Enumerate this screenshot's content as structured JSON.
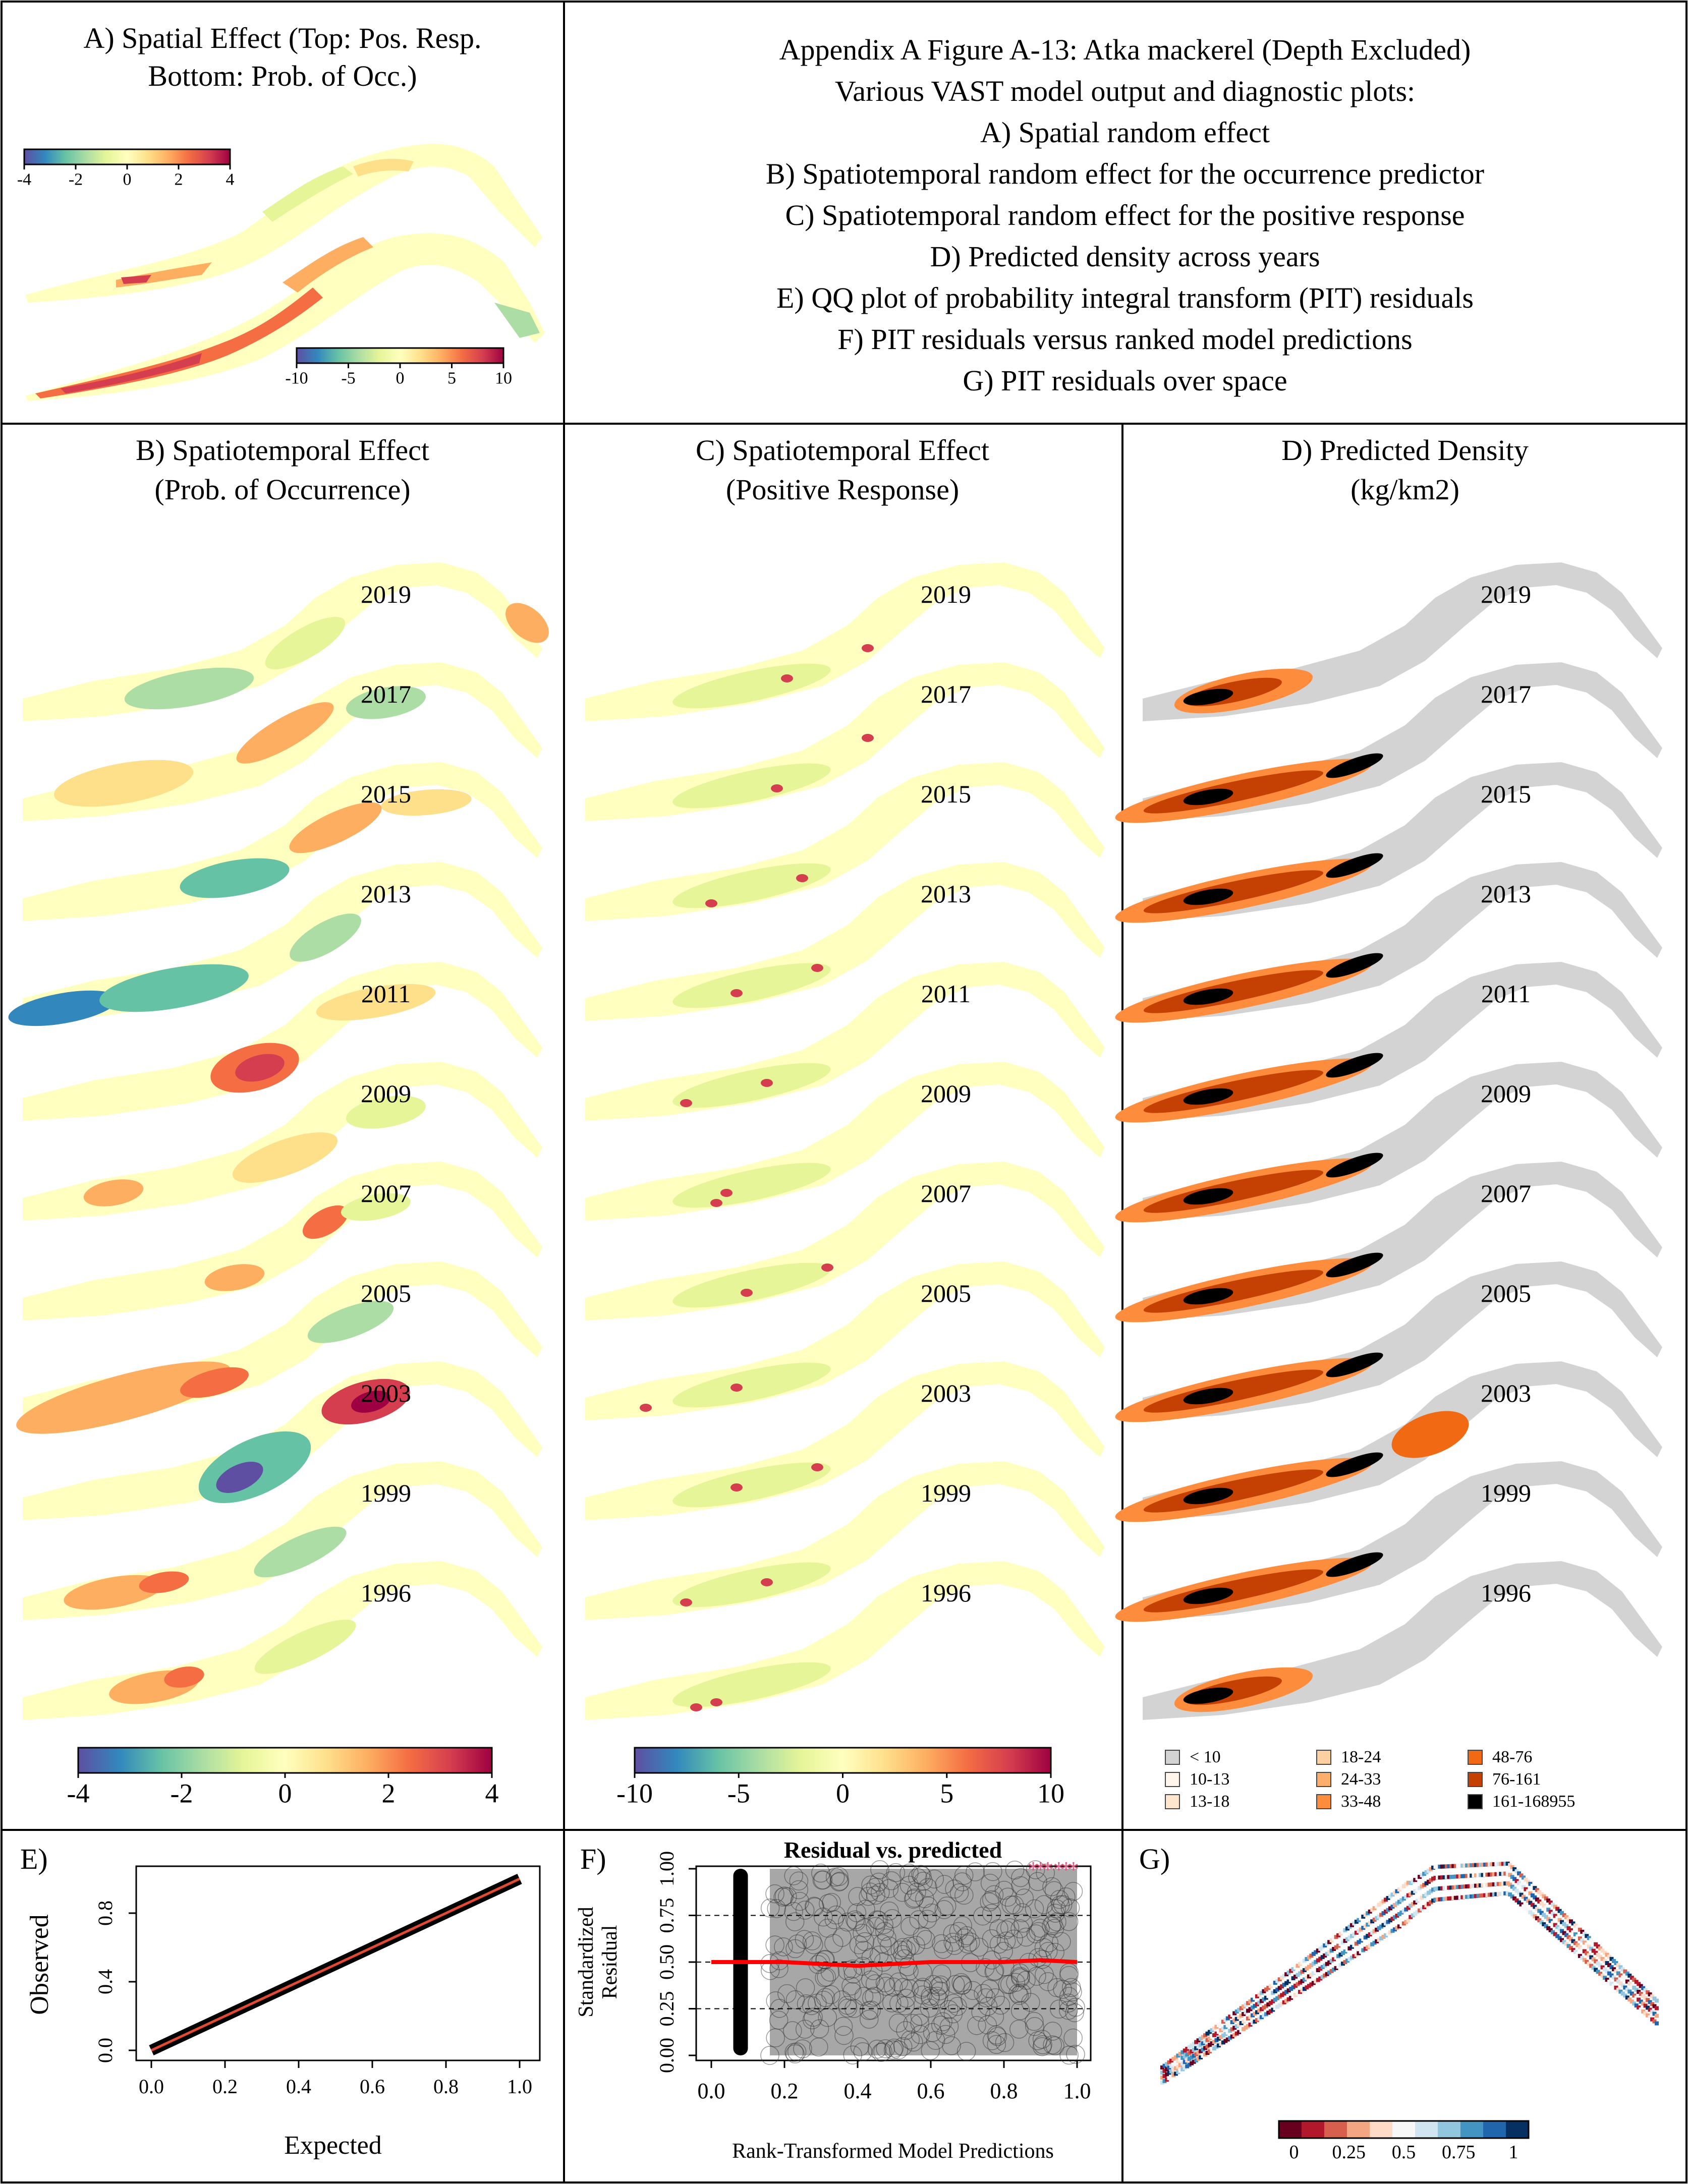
{
  "panel_a": {
    "title": "A) Spatial Effect (Top: Pos. Resp.",
    "title2": "Bottom: Prob. of Occ.)",
    "colorbar_top": {
      "min": -4,
      "max": 4,
      "ticks": [
        "-4",
        "-2",
        "0",
        "2",
        "4"
      ]
    },
    "colorbar_bottom": {
      "min": -10,
      "max": 10,
      "ticks": [
        "-10",
        "-5",
        "0",
        "5",
        "10"
      ]
    }
  },
  "caption": {
    "lines": [
      "Appendix A Figure A-13: Atka mackerel (Depth Excluded)",
      "Various VAST model output and diagnostic plots:",
      "A) Spatial random effect",
      "B) Spatiotemporal random effect for the occurrence predictor",
      "C) Spatiotemporal random effect for the positive response",
      "D) Predicted density across years",
      "E) QQ plot of probability integral transform (PIT) residuals",
      "F) PIT residuals versus ranked model predictions",
      "G) PIT residuals over space"
    ]
  },
  "years": [
    "2019",
    "2017",
    "2015",
    "2013",
    "2011",
    "2009",
    "2007",
    "2005",
    "2003",
    "1999",
    "1996"
  ],
  "panel_b": {
    "title": "B) Spatiotemporal Effect",
    "title2": "(Prob. of Occurrence)",
    "colorbar": {
      "min": -4,
      "max": 4,
      "ticks": [
        "-4",
        "-2",
        "0",
        "2",
        "4"
      ]
    }
  },
  "panel_c": {
    "title": "C) Spatiotemporal Effect",
    "title2": "(Positive Response)",
    "colorbar": {
      "min": -10,
      "max": 10,
      "ticks": [
        "-10",
        "-5",
        "0",
        "5",
        "10"
      ]
    }
  },
  "panel_d": {
    "title": "D) Predicted Density",
    "title2": "(kg/km2)",
    "legend": [
      {
        "label": "< 10",
        "color": "#d3d3d3"
      },
      {
        "label": "10-13",
        "color": "#fff5eb"
      },
      {
        "label": "13-18",
        "color": "#fee6ce"
      },
      {
        "label": "18-24",
        "color": "#fdd0a2"
      },
      {
        "label": "24-33",
        "color": "#fdae6b"
      },
      {
        "label": "33-48",
        "color": "#fd8d3c"
      },
      {
        "label": "48-76",
        "color": "#f16913"
      },
      {
        "label": "76-161",
        "color": "#c44103"
      },
      {
        "label": "161-168955",
        "color": "#000000"
      }
    ]
  },
  "panel_e": {
    "label": "E)",
    "xlabel": "Expected",
    "ylabel": "Observed",
    "xticks": [
      "0.0",
      "0.2",
      "0.4",
      "0.6",
      "0.8",
      "1.0"
    ],
    "yticks": [
      "0.0",
      "0.4",
      "0.8"
    ]
  },
  "panel_f": {
    "label": "F)",
    "title": "Residual vs. predicted",
    "xlabel": "Rank-Transformed Model Predictions",
    "ylabel1": "Standardized",
    "ylabel2": "Residual",
    "xticks": [
      "0.0",
      "0.2",
      "0.4",
      "0.6",
      "0.8",
      "1.0"
    ],
    "yticks": [
      "0.00",
      "0.25",
      "0.50",
      "0.75",
      "1.00"
    ]
  },
  "panel_g": {
    "label": "G)",
    "colorbar": {
      "ticks": [
        "0",
        "0.25",
        "0.5",
        "0.75",
        "1"
      ]
    }
  },
  "colors": {
    "spectral": [
      "#5e4fa2",
      "#3288bd",
      "#66c2a5",
      "#abdda4",
      "#e6f598",
      "#ffffbf",
      "#fee08b",
      "#fdae61",
      "#f46d43",
      "#d53e4f",
      "#9e0142"
    ],
    "rdbu": [
      "#67001f",
      "#b2182b",
      "#d6604d",
      "#f4a582",
      "#fddbc7",
      "#f7f7f7",
      "#d1e5f0",
      "#92c5de",
      "#4393c3",
      "#2166ac",
      "#053061"
    ],
    "qq_line": "#e34a33",
    "resid_line": "#ff0000",
    "outlier": "#e75480"
  },
  "chart_data": [
    {
      "type": "line",
      "title": "",
      "xlabel": "Expected",
      "ylabel": "Observed",
      "xlim": [
        0,
        1
      ],
      "ylim": [
        0,
        1
      ],
      "series": [
        {
          "x": [
            0.0,
            0.1,
            0.2,
            0.3,
            0.4,
            0.5,
            0.6,
            0.7,
            0.8,
            0.9,
            1.0
          ],
          "values": [
            0.0,
            0.1,
            0.2,
            0.3,
            0.4,
            0.5,
            0.6,
            0.7,
            0.8,
            0.9,
            1.0
          ]
        }
      ]
    },
    {
      "type": "scatter",
      "title": "Residual vs. predicted",
      "xlabel": "Rank-Transformed Model Predictions",
      "ylabel": "Standardized Residual",
      "xlim": [
        0,
        1
      ],
      "ylim": [
        0,
        1
      ],
      "quantile_lines": [
        0.25,
        0.5,
        0.75
      ],
      "series": [
        {
          "x": [
            0.0,
            0.1,
            0.2,
            0.3,
            0.4,
            0.5,
            0.6,
            0.7,
            0.8,
            0.9,
            1.0
          ],
          "values": [
            0.5,
            0.5,
            0.5,
            0.49,
            0.48,
            0.49,
            0.5,
            0.5,
            0.5,
            0.51,
            0.5
          ]
        }
      ],
      "outliers": {
        "x": [
          0.88,
          0.9,
          0.92,
          0.95,
          0.97,
          0.99
        ],
        "values": [
          1.0,
          1.0,
          1.0,
          1.0,
          1.0,
          1.0
        ]
      }
    }
  ]
}
